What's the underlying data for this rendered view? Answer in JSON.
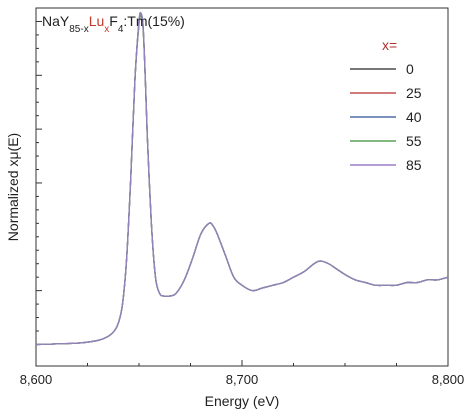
{
  "chart_data": {
    "type": "line",
    "title_parts": [
      {
        "text": "NaY",
        "role": "normal"
      },
      {
        "text": "85-x",
        "role": "sub"
      },
      {
        "text": "Lu",
        "role": "accent"
      },
      {
        "text": "x",
        "role": "accent-sub"
      },
      {
        "text": "F",
        "role": "normal"
      },
      {
        "text": "4",
        "role": "sub"
      },
      {
        "text": ":Tm(15%)",
        "role": "normal"
      }
    ],
    "xlabel": "Energy (eV)",
    "ylabel": "Normalized xμ(E)",
    "xlim": [
      8600,
      8800
    ],
    "ylim": [
      -0.08,
      1.25
    ],
    "x_ticks": [
      8600,
      8700,
      8800
    ],
    "x_tick_labels": [
      "8,600",
      "8,700",
      "8,800"
    ],
    "grid": false,
    "legend": {
      "title": "x=",
      "position": "top-right",
      "entries": [
        "0",
        "25",
        "40",
        "55",
        "85"
      ]
    },
    "colors": {
      "title_accent": "#c0392b",
      "legend_title": "#b03030",
      "series": [
        "#4a4a4a",
        "#c0504d",
        "#4f6fa8",
        "#5aa05a",
        "#9a7fc7"
      ]
    },
    "x": [
      8600,
      8620,
      8630,
      8635,
      8638,
      8640,
      8642,
      8644,
      8646,
      8648,
      8650,
      8651,
      8652,
      8653,
      8654,
      8656,
      8658,
      8660,
      8662,
      8665,
      8668,
      8672,
      8676,
      8680,
      8684,
      8686,
      8688,
      8692,
      8696,
      8700,
      8705,
      8710,
      8715,
      8720,
      8725,
      8730,
      8735,
      8738,
      8742,
      8746,
      8750,
      8755,
      8760,
      8765,
      8770,
      8775,
      8780,
      8785,
      8790,
      8795,
      8800
    ],
    "series": [
      {
        "name": "0",
        "values": [
          0.0,
          0.005,
          0.015,
          0.03,
          0.05,
          0.08,
          0.15,
          0.32,
          0.62,
          0.98,
          1.2,
          1.23,
          1.18,
          1.0,
          0.78,
          0.45,
          0.25,
          0.19,
          0.18,
          0.18,
          0.19,
          0.24,
          0.32,
          0.41,
          0.45,
          0.44,
          0.41,
          0.33,
          0.25,
          0.22,
          0.2,
          0.21,
          0.22,
          0.23,
          0.25,
          0.27,
          0.3,
          0.31,
          0.3,
          0.28,
          0.26,
          0.24,
          0.23,
          0.22,
          0.22,
          0.22,
          0.23,
          0.23,
          0.24,
          0.24,
          0.25
        ]
      },
      {
        "name": "25",
        "values": [
          0.0,
          0.005,
          0.015,
          0.03,
          0.05,
          0.08,
          0.15,
          0.32,
          0.62,
          0.98,
          1.19,
          1.22,
          1.17,
          1.0,
          0.78,
          0.45,
          0.25,
          0.19,
          0.18,
          0.18,
          0.19,
          0.24,
          0.32,
          0.41,
          0.45,
          0.44,
          0.41,
          0.33,
          0.25,
          0.22,
          0.2,
          0.21,
          0.22,
          0.23,
          0.25,
          0.27,
          0.3,
          0.31,
          0.3,
          0.28,
          0.26,
          0.24,
          0.23,
          0.22,
          0.22,
          0.22,
          0.23,
          0.23,
          0.24,
          0.24,
          0.25
        ]
      },
      {
        "name": "40",
        "values": [
          0.0,
          0.005,
          0.015,
          0.03,
          0.05,
          0.08,
          0.15,
          0.32,
          0.62,
          0.98,
          1.2,
          1.23,
          1.18,
          1.0,
          0.78,
          0.45,
          0.25,
          0.19,
          0.18,
          0.18,
          0.19,
          0.24,
          0.32,
          0.41,
          0.45,
          0.44,
          0.41,
          0.33,
          0.25,
          0.22,
          0.2,
          0.21,
          0.22,
          0.23,
          0.25,
          0.27,
          0.3,
          0.31,
          0.3,
          0.28,
          0.26,
          0.24,
          0.23,
          0.22,
          0.22,
          0.22,
          0.23,
          0.23,
          0.24,
          0.24,
          0.25
        ]
      },
      {
        "name": "55",
        "values": [
          0.0,
          0.005,
          0.015,
          0.03,
          0.05,
          0.08,
          0.15,
          0.32,
          0.62,
          0.98,
          1.19,
          1.22,
          1.17,
          1.0,
          0.78,
          0.45,
          0.25,
          0.19,
          0.18,
          0.18,
          0.19,
          0.24,
          0.32,
          0.41,
          0.45,
          0.44,
          0.41,
          0.33,
          0.25,
          0.22,
          0.2,
          0.21,
          0.22,
          0.23,
          0.25,
          0.27,
          0.3,
          0.31,
          0.3,
          0.28,
          0.26,
          0.24,
          0.23,
          0.22,
          0.22,
          0.22,
          0.23,
          0.23,
          0.24,
          0.24,
          0.25
        ]
      },
      {
        "name": "85",
        "values": [
          0.0,
          0.005,
          0.015,
          0.03,
          0.05,
          0.08,
          0.15,
          0.32,
          0.62,
          0.98,
          1.2,
          1.23,
          1.18,
          1.0,
          0.78,
          0.45,
          0.25,
          0.19,
          0.18,
          0.18,
          0.19,
          0.24,
          0.32,
          0.41,
          0.45,
          0.44,
          0.41,
          0.33,
          0.25,
          0.22,
          0.2,
          0.21,
          0.22,
          0.23,
          0.25,
          0.27,
          0.3,
          0.31,
          0.3,
          0.28,
          0.26,
          0.24,
          0.23,
          0.22,
          0.22,
          0.22,
          0.23,
          0.23,
          0.24,
          0.24,
          0.25
        ]
      }
    ]
  }
}
